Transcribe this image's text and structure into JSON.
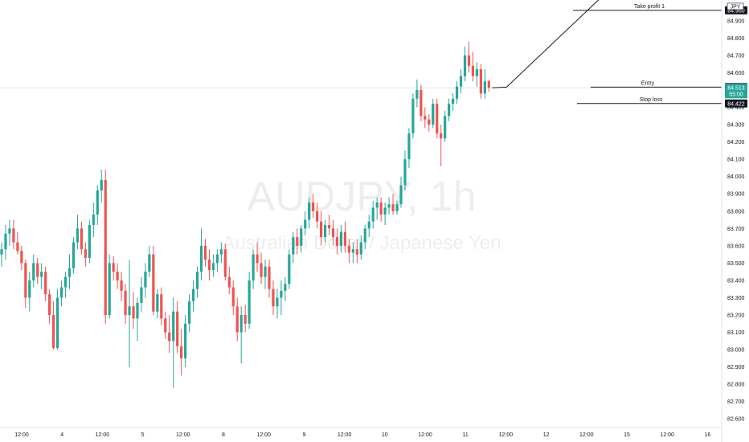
{
  "chart_data": {
    "type": "candlestick",
    "title": "AUDJPY, 1h",
    "subtitle": "Australian Dollar / Japanese Yen",
    "colors": {
      "up": "#26a69a",
      "down": "#ef5350",
      "price_line": "#26a69a",
      "axis_text": "#131722",
      "label_bg": "#131722",
      "watermark_opacity": 0.07
    },
    "ylim": [
      82.55,
      85.02
    ],
    "y_ticks": [
      "84.900",
      "84.800",
      "84.700",
      "84.600",
      "84.500",
      "84.400",
      "84.300",
      "84.200",
      "84.100",
      "84.000",
      "83.900",
      "83.800",
      "83.700",
      "83.600",
      "83.500",
      "83.400",
      "83.300",
      "83.200",
      "83.100",
      "83.000",
      "82.900",
      "82.800",
      "82.700",
      "82.600"
    ],
    "x_ticks": [
      "12:00",
      "4",
      "12:00",
      "5",
      "12:00",
      "8",
      "12:00",
      "9",
      "12:00",
      "10",
      "12:00",
      "11",
      "12:00",
      "12",
      "12:00",
      "15",
      "12:00",
      "16"
    ],
    "candles": [
      {
        "o": 83.55,
        "h": 83.62,
        "l": 83.48,
        "c": 83.58
      },
      {
        "o": 83.58,
        "h": 83.72,
        "l": 83.52,
        "c": 83.67
      },
      {
        "o": 83.67,
        "h": 83.75,
        "l": 83.6,
        "c": 83.7
      },
      {
        "o": 83.7,
        "h": 83.75,
        "l": 83.58,
        "c": 83.62
      },
      {
        "o": 83.62,
        "h": 83.68,
        "l": 83.55,
        "c": 83.57
      },
      {
        "o": 83.57,
        "h": 83.6,
        "l": 83.46,
        "c": 83.5
      },
      {
        "o": 83.5,
        "h": 83.52,
        "l": 83.24,
        "c": 83.3
      },
      {
        "o": 83.3,
        "h": 83.45,
        "l": 83.22,
        "c": 83.4
      },
      {
        "o": 83.4,
        "h": 83.55,
        "l": 83.36,
        "c": 83.5
      },
      {
        "o": 83.5,
        "h": 83.53,
        "l": 83.38,
        "c": 83.42
      },
      {
        "o": 83.42,
        "h": 83.5,
        "l": 83.35,
        "c": 83.45
      },
      {
        "o": 83.45,
        "h": 83.48,
        "l": 83.28,
        "c": 83.32
      },
      {
        "o": 83.32,
        "h": 83.35,
        "l": 83.15,
        "c": 83.2
      },
      {
        "o": 83.2,
        "h": 83.28,
        "l": 83.0,
        "c": 83.01
      },
      {
        "o": 83.01,
        "h": 83.35,
        "l": 83.0,
        "c": 83.3
      },
      {
        "o": 83.3,
        "h": 83.4,
        "l": 83.25,
        "c": 83.36
      },
      {
        "o": 83.36,
        "h": 83.45,
        "l": 83.3,
        "c": 83.42
      },
      {
        "o": 83.42,
        "h": 83.55,
        "l": 83.35,
        "c": 83.47
      },
      {
        "o": 83.47,
        "h": 83.65,
        "l": 83.44,
        "c": 83.62
      },
      {
        "o": 83.62,
        "h": 83.78,
        "l": 83.58,
        "c": 83.7
      },
      {
        "o": 83.7,
        "h": 83.74,
        "l": 83.55,
        "c": 83.58
      },
      {
        "o": 83.58,
        "h": 83.62,
        "l": 83.48,
        "c": 83.53
      },
      {
        "o": 83.53,
        "h": 83.75,
        "l": 83.5,
        "c": 83.72
      },
      {
        "o": 83.72,
        "h": 83.85,
        "l": 83.65,
        "c": 83.78
      },
      {
        "o": 83.78,
        "h": 83.95,
        "l": 83.72,
        "c": 83.92
      },
      {
        "o": 83.92,
        "h": 84.04,
        "l": 83.85,
        "c": 83.98
      },
      {
        "o": 83.98,
        "h": 84.04,
        "l": 83.15,
        "c": 83.2
      },
      {
        "o": 83.2,
        "h": 83.55,
        "l": 83.18,
        "c": 83.5
      },
      {
        "o": 83.5,
        "h": 83.54,
        "l": 83.4,
        "c": 83.45
      },
      {
        "o": 83.45,
        "h": 83.5,
        "l": 83.35,
        "c": 83.4
      },
      {
        "o": 83.4,
        "h": 83.45,
        "l": 83.28,
        "c": 83.34
      },
      {
        "o": 83.34,
        "h": 83.38,
        "l": 83.15,
        "c": 83.2
      },
      {
        "o": 83.2,
        "h": 83.52,
        "l": 82.9,
        "c": 83.25
      },
      {
        "o": 83.25,
        "h": 83.33,
        "l": 83.12,
        "c": 83.18
      },
      {
        "o": 83.18,
        "h": 83.3,
        "l": 83.05,
        "c": 83.27
      },
      {
        "o": 83.27,
        "h": 83.42,
        "l": 83.22,
        "c": 83.36
      },
      {
        "o": 83.36,
        "h": 83.5,
        "l": 83.3,
        "c": 83.45
      },
      {
        "o": 83.45,
        "h": 83.6,
        "l": 83.42,
        "c": 83.55
      },
      {
        "o": 83.55,
        "h": 83.6,
        "l": 83.2,
        "c": 83.22
      },
      {
        "o": 83.22,
        "h": 83.35,
        "l": 83.18,
        "c": 83.32
      },
      {
        "o": 83.32,
        "h": 83.36,
        "l": 83.14,
        "c": 83.18
      },
      {
        "o": 83.18,
        "h": 83.22,
        "l": 83.06,
        "c": 83.1
      },
      {
        "o": 83.1,
        "h": 83.2,
        "l": 82.98,
        "c": 83.05
      },
      {
        "o": 83.05,
        "h": 83.3,
        "l": 82.78,
        "c": 83.22
      },
      {
        "o": 83.22,
        "h": 83.28,
        "l": 82.98,
        "c": 83.02
      },
      {
        "o": 83.02,
        "h": 83.12,
        "l": 82.85,
        "c": 82.95
      },
      {
        "o": 82.95,
        "h": 83.2,
        "l": 82.9,
        "c": 83.15
      },
      {
        "o": 83.15,
        "h": 83.32,
        "l": 83.1,
        "c": 83.28
      },
      {
        "o": 83.28,
        "h": 83.4,
        "l": 83.22,
        "c": 83.35
      },
      {
        "o": 83.35,
        "h": 83.48,
        "l": 83.3,
        "c": 83.45
      },
      {
        "o": 83.45,
        "h": 83.7,
        "l": 83.4,
        "c": 83.6
      },
      {
        "o": 83.6,
        "h": 83.64,
        "l": 83.48,
        "c": 83.52
      },
      {
        "o": 83.52,
        "h": 83.58,
        "l": 83.4,
        "c": 83.46
      },
      {
        "o": 83.46,
        "h": 83.55,
        "l": 83.42,
        "c": 83.5
      },
      {
        "o": 83.5,
        "h": 83.58,
        "l": 83.45,
        "c": 83.55
      },
      {
        "o": 83.55,
        "h": 83.62,
        "l": 83.5,
        "c": 83.58
      },
      {
        "o": 83.58,
        "h": 83.61,
        "l": 83.4,
        "c": 83.42
      },
      {
        "o": 83.42,
        "h": 83.48,
        "l": 83.32,
        "c": 83.36
      },
      {
        "o": 83.36,
        "h": 83.4,
        "l": 83.2,
        "c": 83.25
      },
      {
        "o": 83.25,
        "h": 83.3,
        "l": 83.05,
        "c": 83.1
      },
      {
        "o": 83.1,
        "h": 83.25,
        "l": 82.92,
        "c": 83.2
      },
      {
        "o": 83.2,
        "h": 83.26,
        "l": 83.1,
        "c": 83.15
      },
      {
        "o": 83.15,
        "h": 83.45,
        "l": 83.12,
        "c": 83.4
      },
      {
        "o": 83.4,
        "h": 83.58,
        "l": 83.35,
        "c": 83.55
      },
      {
        "o": 83.55,
        "h": 83.62,
        "l": 83.45,
        "c": 83.5
      },
      {
        "o": 83.5,
        "h": 83.56,
        "l": 83.38,
        "c": 83.42
      },
      {
        "o": 83.42,
        "h": 83.52,
        "l": 83.35,
        "c": 83.48
      },
      {
        "o": 83.48,
        "h": 83.52,
        "l": 83.3,
        "c": 83.35
      },
      {
        "o": 83.35,
        "h": 83.4,
        "l": 83.2,
        "c": 83.25
      },
      {
        "o": 83.25,
        "h": 83.35,
        "l": 83.18,
        "c": 83.3
      },
      {
        "o": 83.3,
        "h": 83.4,
        "l": 83.2,
        "c": 83.34
      },
      {
        "o": 83.34,
        "h": 83.42,
        "l": 83.28,
        "c": 83.38
      },
      {
        "o": 83.38,
        "h": 83.58,
        "l": 83.35,
        "c": 83.55
      },
      {
        "o": 83.55,
        "h": 83.68,
        "l": 83.5,
        "c": 83.65
      },
      {
        "o": 83.65,
        "h": 83.7,
        "l": 83.55,
        "c": 83.6
      },
      {
        "o": 83.6,
        "h": 83.72,
        "l": 83.56,
        "c": 83.7
      },
      {
        "o": 83.7,
        "h": 83.8,
        "l": 83.66,
        "c": 83.75
      },
      {
        "o": 83.75,
        "h": 83.88,
        "l": 83.7,
        "c": 83.85
      },
      {
        "o": 83.85,
        "h": 83.9,
        "l": 83.76,
        "c": 83.8
      },
      {
        "o": 83.8,
        "h": 83.85,
        "l": 83.7,
        "c": 83.74
      },
      {
        "o": 83.74,
        "h": 83.8,
        "l": 83.6,
        "c": 83.65
      },
      {
        "o": 83.65,
        "h": 83.75,
        "l": 83.62,
        "c": 83.72
      },
      {
        "o": 83.72,
        "h": 83.78,
        "l": 83.66,
        "c": 83.7
      },
      {
        "o": 83.7,
        "h": 83.75,
        "l": 83.6,
        "c": 83.65
      },
      {
        "o": 83.65,
        "h": 83.7,
        "l": 83.55,
        "c": 83.6
      },
      {
        "o": 83.6,
        "h": 83.72,
        "l": 83.56,
        "c": 83.68
      },
      {
        "o": 83.68,
        "h": 83.74,
        "l": 83.56,
        "c": 83.6
      },
      {
        "o": 83.6,
        "h": 83.64,
        "l": 83.5,
        "c": 83.56
      },
      {
        "o": 83.56,
        "h": 83.62,
        "l": 83.5,
        "c": 83.58
      },
      {
        "o": 83.58,
        "h": 83.64,
        "l": 83.5,
        "c": 83.55
      },
      {
        "o": 83.55,
        "h": 83.66,
        "l": 83.52,
        "c": 83.62
      },
      {
        "o": 83.62,
        "h": 83.72,
        "l": 83.58,
        "c": 83.7
      },
      {
        "o": 83.7,
        "h": 83.78,
        "l": 83.65,
        "c": 83.74
      },
      {
        "o": 83.74,
        "h": 83.86,
        "l": 83.7,
        "c": 83.82
      },
      {
        "o": 83.82,
        "h": 83.88,
        "l": 83.75,
        "c": 83.85
      },
      {
        "o": 83.85,
        "h": 83.88,
        "l": 83.74,
        "c": 83.78
      },
      {
        "o": 83.78,
        "h": 83.85,
        "l": 83.72,
        "c": 83.82
      },
      {
        "o": 83.82,
        "h": 83.88,
        "l": 83.78,
        "c": 83.84
      },
      {
        "o": 83.84,
        "h": 83.9,
        "l": 83.78,
        "c": 83.8
      },
      {
        "o": 83.8,
        "h": 83.86,
        "l": 83.78,
        "c": 83.84
      },
      {
        "o": 83.84,
        "h": 84.0,
        "l": 83.82,
        "c": 83.95
      },
      {
        "o": 83.95,
        "h": 84.15,
        "l": 83.92,
        "c": 84.1
      },
      {
        "o": 84.1,
        "h": 84.28,
        "l": 84.05,
        "c": 84.25
      },
      {
        "o": 84.25,
        "h": 84.48,
        "l": 84.22,
        "c": 84.45
      },
      {
        "o": 84.45,
        "h": 84.56,
        "l": 84.4,
        "c": 84.5
      },
      {
        "o": 84.5,
        "h": 84.53,
        "l": 84.32,
        "c": 84.35
      },
      {
        "o": 84.35,
        "h": 84.4,
        "l": 84.28,
        "c": 84.33
      },
      {
        "o": 84.33,
        "h": 84.36,
        "l": 84.26,
        "c": 84.3
      },
      {
        "o": 84.3,
        "h": 84.45,
        "l": 84.28,
        "c": 84.42
      },
      {
        "o": 84.42,
        "h": 84.45,
        "l": 84.22,
        "c": 84.25
      },
      {
        "o": 84.25,
        "h": 84.3,
        "l": 84.06,
        "c": 84.22
      },
      {
        "o": 84.22,
        "h": 84.38,
        "l": 84.2,
        "c": 84.35
      },
      {
        "o": 84.35,
        "h": 84.45,
        "l": 84.32,
        "c": 84.42
      },
      {
        "o": 84.42,
        "h": 84.48,
        "l": 84.38,
        "c": 84.45
      },
      {
        "o": 84.45,
        "h": 84.55,
        "l": 84.42,
        "c": 84.52
      },
      {
        "o": 84.52,
        "h": 84.62,
        "l": 84.48,
        "c": 84.58
      },
      {
        "o": 84.58,
        "h": 84.75,
        "l": 84.55,
        "c": 84.7
      },
      {
        "o": 84.7,
        "h": 84.78,
        "l": 84.6,
        "c": 84.64
      },
      {
        "o": 84.64,
        "h": 84.72,
        "l": 84.55,
        "c": 84.58
      },
      {
        "o": 84.58,
        "h": 84.66,
        "l": 84.52,
        "c": 84.62
      },
      {
        "o": 84.62,
        "h": 84.65,
        "l": 84.45,
        "c": 84.48
      },
      {
        "o": 84.48,
        "h": 84.62,
        "l": 84.45,
        "c": 84.55
      },
      {
        "o": 84.55,
        "h": 84.56,
        "l": 84.49,
        "c": 84.513
      }
    ],
    "price_line": {
      "value": "84.513",
      "countdown": "55:00"
    },
    "orders": [
      {
        "label": "Take profit 1",
        "value": "84.960",
        "axis_text": "84.960"
      },
      {
        "label": "Entry",
        "value": "84.517",
        "axis_text": "84.517"
      },
      {
        "label": "Stop loss",
        "value": "84.422",
        "axis_text": "84.422"
      }
    ],
    "axis_marker": {
      "text": "JPY"
    },
    "grid": false,
    "legend": "none"
  }
}
